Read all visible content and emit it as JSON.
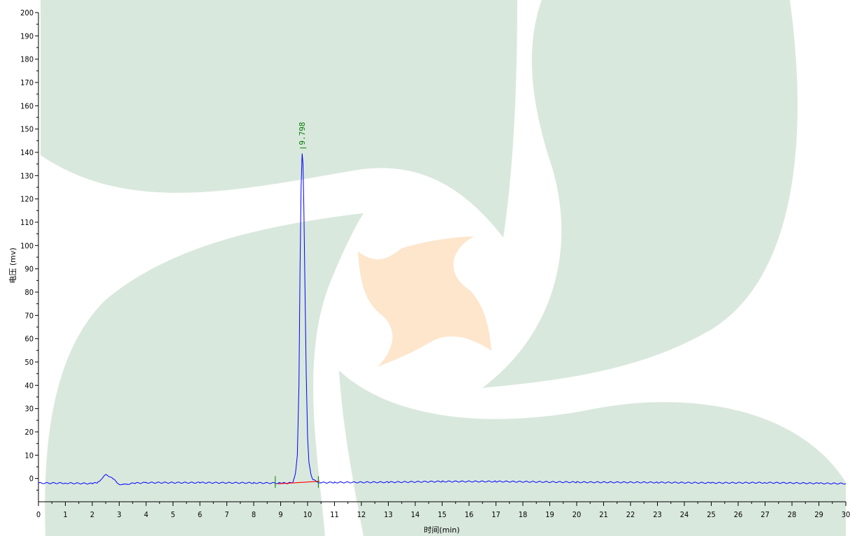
{
  "chart_data": {
    "type": "line",
    "xlabel": "时间(min)",
    "ylabel": "电压 (mv)",
    "xlim": [
      0,
      30
    ],
    "ylim": [
      -10,
      200
    ],
    "x_ticks": [
      0,
      1,
      2,
      3,
      4,
      5,
      6,
      7,
      8,
      9,
      10,
      11,
      12,
      13,
      14,
      15,
      16,
      17,
      18,
      19,
      20,
      21,
      22,
      23,
      24,
      25,
      26,
      27,
      28,
      29,
      30
    ],
    "y_ticks": [
      0,
      10,
      20,
      30,
      40,
      50,
      60,
      70,
      80,
      90,
      100,
      110,
      120,
      130,
      140,
      150,
      160,
      170,
      180,
      190,
      200
    ],
    "y_tick_labels": [
      "0",
      "10",
      "20",
      "30",
      "40",
      "50",
      "60",
      "70",
      "80",
      "90",
      "100",
      "110",
      "120",
      "130",
      "140",
      "150",
      "160",
      "170",
      "180",
      "190",
      "200"
    ],
    "grid": false,
    "series": [
      {
        "color": "#0000ff",
        "x": [
          0,
          1.0,
          2.0,
          2.2,
          2.35,
          2.5,
          2.6,
          2.8,
          3.0,
          3.15,
          3.3,
          3.6,
          4.0,
          6.0,
          8.0,
          9.0,
          9.3,
          9.45,
          9.55,
          9.62,
          9.68,
          9.72,
          9.76,
          9.798,
          9.83,
          9.86,
          9.9,
          9.95,
          10.0,
          10.05,
          10.12,
          10.2,
          10.35,
          10.5,
          11,
          13,
          15,
          17,
          20,
          23,
          25,
          27,
          29,
          30
        ],
        "y": [
          -2,
          -2,
          -2.2,
          -1.8,
          0,
          1.5,
          1.2,
          -0.5,
          -2.4,
          -2.7,
          -2.4,
          -2,
          -1.8,
          -1.8,
          -1.9,
          -2,
          -2,
          -1.5,
          2,
          10,
          40,
          90,
          125,
          139.5,
          135,
          118,
          85,
          45,
          18,
          7,
          2,
          -0.5,
          -1.5,
          -1.8,
          -1.7,
          -1.6,
          -1.3,
          -1.3,
          -1.6,
          -1.7,
          -1.9,
          -1.8,
          -2.1,
          -2.2
        ]
      }
    ],
    "baseline": {
      "color": "#ff0000",
      "x": [
        8.9,
        10.45
      ],
      "y": [
        -2.3,
        -1.2
      ]
    },
    "markers": {
      "color": "#008000",
      "x": [
        8.8,
        10.4
      ]
    },
    "peaks": [
      {
        "x": 9.798,
        "y": 139.5,
        "label": "9.798",
        "color": "#008000"
      }
    ],
    "watermark_colors": {
      "green": "#d9e8dd",
      "orange": "#fde6cc"
    }
  }
}
